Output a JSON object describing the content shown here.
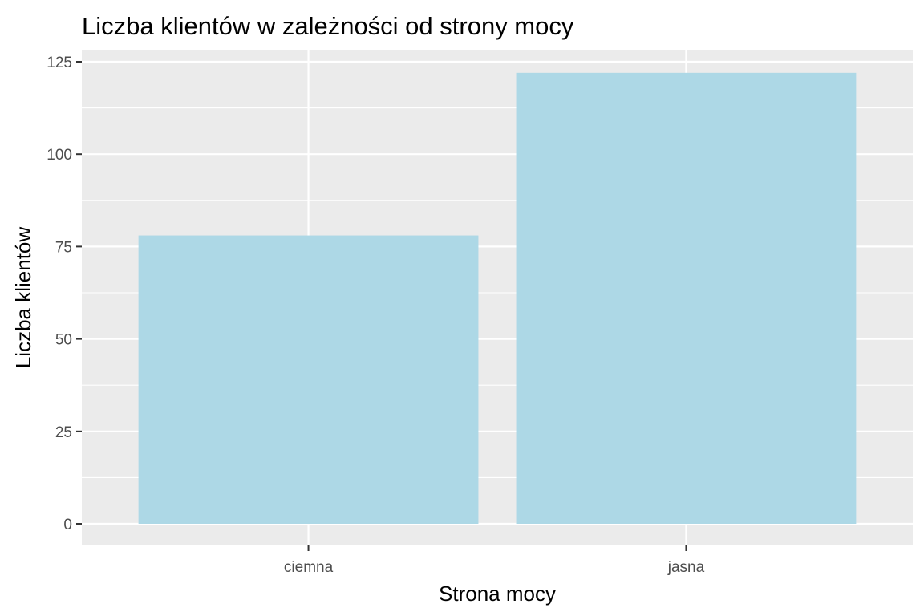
{
  "chart_data": {
    "type": "bar",
    "title": "Liczba klientów w zależności od strony mocy",
    "xlabel": "Strona mocy",
    "ylabel": "Liczba klientów",
    "categories": [
      "ciemna",
      "jasna"
    ],
    "values": [
      78,
      122
    ],
    "ylim": [
      0,
      128.5
    ],
    "y_ticks": [
      0,
      25,
      50,
      75,
      100,
      125
    ],
    "y_tick_labels": [
      "0",
      "25",
      "50",
      "75",
      "100",
      "125"
    ],
    "grid": true,
    "legend": "none",
    "colors": {
      "bar": "#ADD8E6",
      "panel_background": "#EBEBEB",
      "grid": "#FFFFFF",
      "tick_text": "#4D4D4D",
      "tick_mark": "#333333"
    }
  }
}
